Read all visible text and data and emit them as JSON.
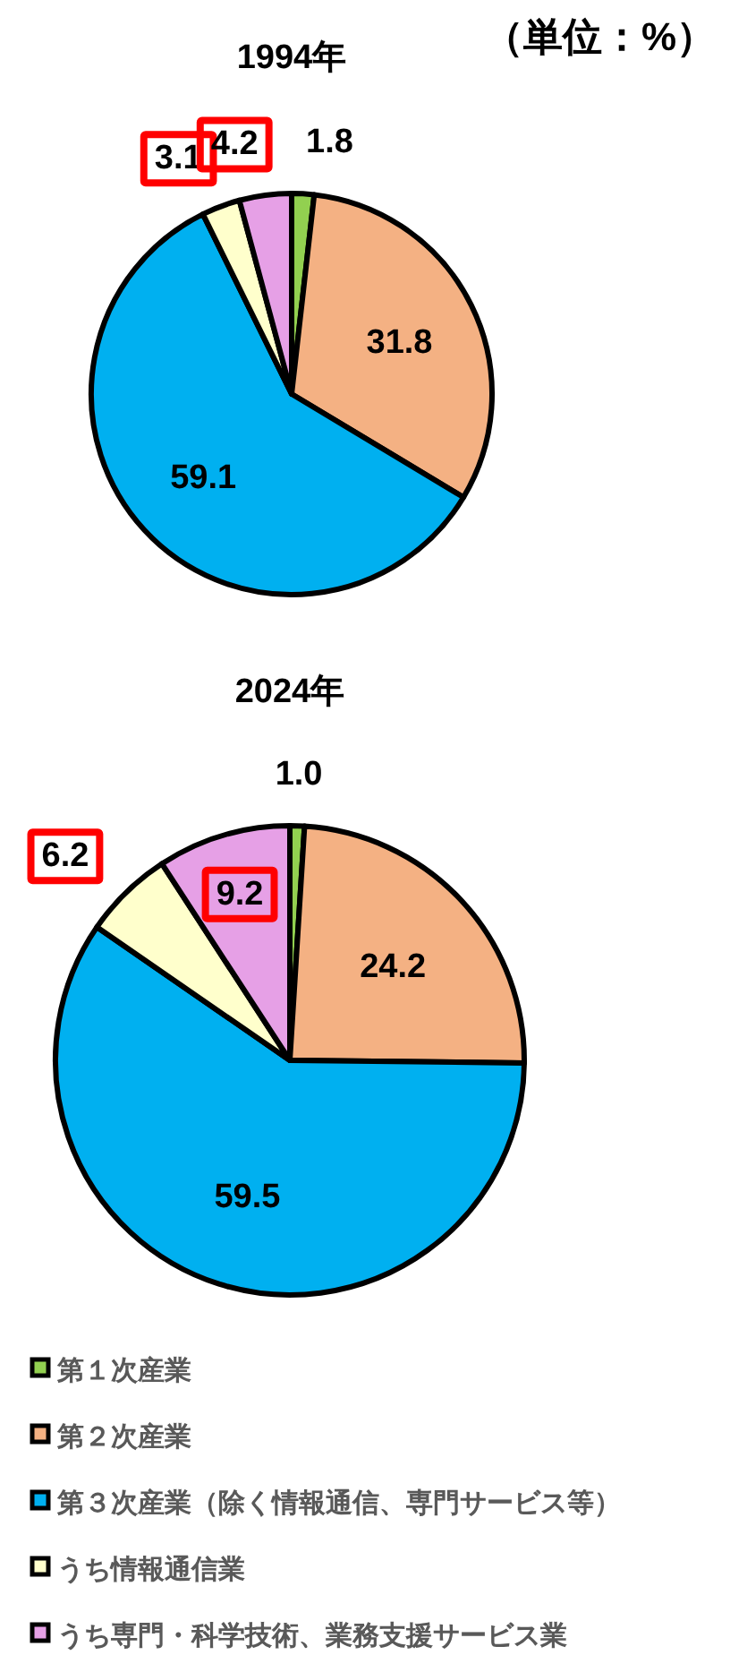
{
  "chart_data": [
    {
      "type": "pie",
      "title": "1994年",
      "annotations": [
        "（単位：%）"
      ],
      "categories": [
        null,
        null,
        null,
        null,
        null
      ],
      "values": [
        1.8,
        31.8,
        59.1,
        3.1,
        4.2
      ],
      "value_labels": [
        "1.8",
        "31.8",
        "59.1",
        "3.1",
        "4.2"
      ],
      "colors": [
        "#92d050",
        "#f4b183",
        "#00b0f0",
        "#ffffcc",
        "#e6a0e6"
      ]
    },
    {
      "type": "pie",
      "title": "2024年",
      "legend": "bottom",
      "categories": [
        "第１次産業",
        "第２次産業",
        "第３次産業（除く情報通信、専門サービス等）",
        "うち情報通信業",
        "うち専門・科学技術、業務支援サービス業"
      ],
      "values": [
        1.0,
        24.2,
        59.5,
        6.2,
        9.2
      ],
      "value_labels": [
        "1.0",
        "24.2",
        "59.5",
        "6.2",
        "9.2"
      ],
      "colors": [
        "#92d050",
        "#f4b183",
        "#00b0f0",
        "#ffffcc",
        "#e6a0e6"
      ]
    }
  ]
}
